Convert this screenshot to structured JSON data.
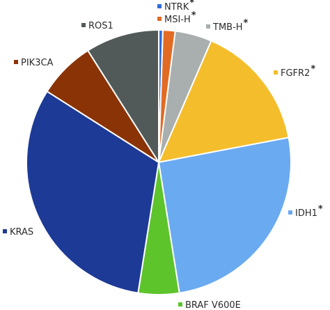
{
  "chart_data": {
    "type": "pie",
    "title": "",
    "slices": [
      {
        "name": "NTRK",
        "value": 0.5,
        "color": "#2f6bd8",
        "starred": true
      },
      {
        "name": "MSI-H",
        "value": 1.5,
        "color": "#e26b24",
        "starred": true
      },
      {
        "name": "TMB-H",
        "value": 4.5,
        "color": "#a9aeae",
        "starred": true
      },
      {
        "name": "FGFR2",
        "value": 15.5,
        "color": "#f4bd2b",
        "starred": true
      },
      {
        "name": "IDH1",
        "value": 25.5,
        "color": "#6aaaf0",
        "starred": true
      },
      {
        "name": "BRAF V600E",
        "value": 5.0,
        "color": "#5dc42c",
        "starred": false
      },
      {
        "name": "KRAS",
        "value": 31.5,
        "color": "#1d3a96",
        "starred": false
      },
      {
        "name": "PIK3CA",
        "value": 7.0,
        "color": "#8a3306",
        "starred": false
      },
      {
        "name": "ROS1",
        "value": 9.0,
        "color": "#515959",
        "starred": false
      }
    ],
    "star_symbol": "*",
    "legend": "labels-around-pie"
  }
}
